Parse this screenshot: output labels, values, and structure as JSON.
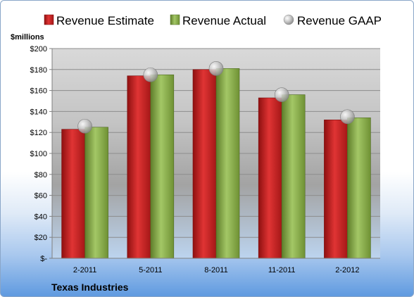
{
  "chart_data": {
    "type": "bar",
    "title": "",
    "xlabel": "",
    "ylabel": "$millions",
    "ylim": [
      0,
      200
    ],
    "yticks": [
      "$-",
      "$20",
      "$40",
      "$60",
      "$80",
      "$100",
      "$120",
      "$140",
      "$160",
      "$180",
      "$200"
    ],
    "categories": [
      "2-2011",
      "5-2011",
      "8-2011",
      "11-2011",
      "2-2012"
    ],
    "series": [
      {
        "name": "Revenue Estimate",
        "type": "bar",
        "color": "#d42a2a",
        "values": [
          123,
          174,
          180,
          153,
          132
        ]
      },
      {
        "name": "Revenue Actual",
        "type": "bar",
        "color": "#8db04e",
        "values": [
          125,
          175,
          181,
          156,
          134
        ]
      },
      {
        "name": "Revenue GAAP",
        "type": "marker",
        "color": "#b8b8b8",
        "values": [
          126,
          175,
          181,
          156,
          135
        ]
      }
    ],
    "legend_position": "top",
    "grid": true,
    "footer": "Texas Industries"
  }
}
